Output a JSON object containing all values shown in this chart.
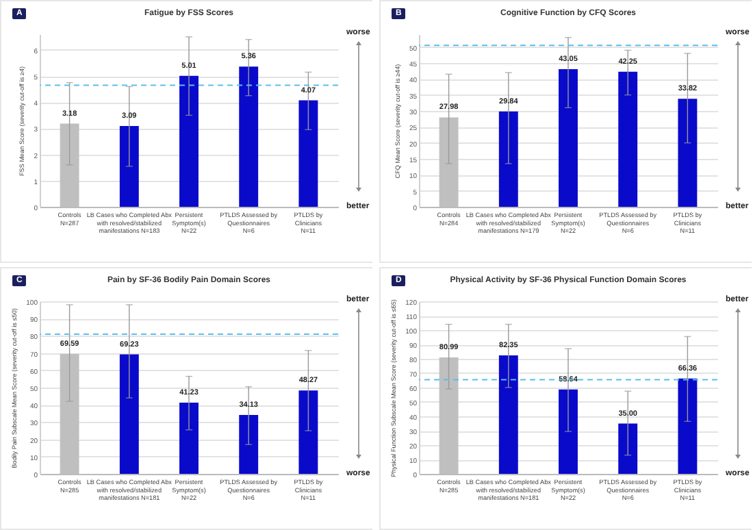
{
  "chart_data": [
    {
      "type": "bar",
      "title": "Fatigue by FSS Scores",
      "ylabel": "FSS Mean Score (severity cut-off is ≥4)",
      "categories": [
        "Controls\nN=287",
        "LB Cases who Completed Abx\nwith resolved/stabilized\nmanifestations N=183",
        "Persistent\nSymptom(s)\nN=22",
        "PTLDS Assessed by\nQuestionnaires\nN=6",
        "PTLDS by\nClinicians\nN=11"
      ],
      "values": [
        3.18,
        3.09,
        5.01,
        5.36,
        4.07
      ],
      "value_labels": [
        "3.18",
        "3.09",
        "5.01",
        "5.36",
        "4.07"
      ],
      "errors": [
        [
          1.6,
          4.75
        ],
        [
          1.55,
          4.6
        ],
        [
          3.5,
          6.5
        ],
        [
          4.25,
          6.4
        ],
        [
          2.95,
          5.15
        ]
      ],
      "colors": [
        "#bfbfbf",
        "#0a0acb",
        "#0a0acb",
        "#0a0acb",
        "#0a0acb"
      ],
      "ylim": [
        0,
        6.6
      ],
      "yticks": [
        0,
        1,
        2,
        3,
        4,
        5,
        6
      ],
      "grid": "y",
      "ref_lines": [
        {
          "axis": "y",
          "value": 4.65,
          "color": "#5bbfe9",
          "line_style": "dashed"
        }
      ],
      "annotations": [
        "A",
        "worse",
        "better"
      ]
    },
    {
      "type": "bar",
      "title": "Cognitive Function by CFQ Scores",
      "ylabel": "CFQ Mean Score (severity cut-off is ≥44)",
      "categories": [
        "Controls\nN=284",
        "LB Cases who Completed Abx\nwith resolved/stabilized\nmanifestations N=179",
        "Persistent\nSymptom(s)\nN=22",
        "PTLDS Assessed by\nQuestionnaires\nN=6",
        "PTLDS by\nClinicians\nN=11"
      ],
      "values": [
        27.98,
        29.84,
        43.05,
        42.25,
        33.82
      ],
      "value_labels": [
        "27.98",
        "29.84",
        "43.05",
        "42.25",
        "33.82"
      ],
      "errors": [
        [
          13.5,
          41.5
        ],
        [
          13.5,
          42
        ],
        [
          31,
          53
        ],
        [
          35,
          49
        ],
        [
          20,
          48
        ]
      ],
      "colors": [
        "#bfbfbf",
        "#0a0acb",
        "#0a0acb",
        "#0a0acb",
        "#0a0acb"
      ],
      "ylim": [
        0,
        54
      ],
      "yticks": [
        0,
        5,
        10,
        15,
        20,
        25,
        30,
        35,
        40,
        45,
        50
      ],
      "grid": "y",
      "ref_lines": [
        {
          "axis": "y",
          "value": 50.5,
          "color": "#5bbfe9",
          "line_style": "dashed"
        }
      ],
      "annotations": [
        "B",
        "worse",
        "better"
      ]
    },
    {
      "type": "bar",
      "title": "Pain by SF-36 Bodily Pain Domain Scores",
      "ylabel": "Bodily Pain Subscale Mean Score (severity cut-off is ≤50)",
      "categories": [
        "Controls\nN=285",
        "LB Cases who Completed Abx\nwith resolved/stabilized\nmanifestations N=181",
        "Persistent\nSymptom(s)\nN=22",
        "PTLDS Assessed by\nQuestionnaires\nN=6",
        "PTLDS by\nClinicians\nN=11"
      ],
      "values": [
        69.59,
        69.23,
        41.23,
        34.13,
        48.27
      ],
      "value_labels": [
        "69.59",
        "69.23",
        "41.23",
        "34.13",
        "48.27"
      ],
      "errors": [
        [
          42,
          98
        ],
        [
          44,
          98
        ],
        [
          25.5,
          56.5
        ],
        [
          17,
          50.5
        ],
        [
          25,
          71.5
        ]
      ],
      "colors": [
        "#bfbfbf",
        "#0a0acb",
        "#0a0acb",
        "#0a0acb",
        "#0a0acb"
      ],
      "ylim": [
        0,
        100
      ],
      "yticks": [
        0,
        10,
        20,
        30,
        40,
        50,
        60,
        70,
        80,
        90,
        100
      ],
      "grid": "y",
      "ref_lines": [
        {
          "axis": "y",
          "value": 81,
          "color": "#5bbfe9",
          "line_style": "dashed"
        }
      ],
      "annotations": [
        "C",
        "better",
        "worse"
      ]
    },
    {
      "type": "bar",
      "title": "Physical Activity by SF-36 Physical Function Domain Scores",
      "ylabel": "Physical Function Subscale Mean Score (severity cut-off is ≤65)",
      "categories": [
        "Controls\nN=285",
        "LB Cases who Completed Abx\nwith resolved/stabilized\nmanifestations N=181",
        "Persistent\nSymptom(s)\nN=22",
        "PTLDS Assessed by\nQuestionnaires\nN=6",
        "PTLDS by\nClinicians\nN=11"
      ],
      "values": [
        80.99,
        82.35,
        58.64,
        35.0,
        66.36
      ],
      "value_labels": [
        "80.99",
        "82.35",
        "58.64",
        "35.00",
        "66.36"
      ],
      "errors": [
        [
          59,
          104
        ],
        [
          60,
          104
        ],
        [
          29.5,
          87
        ],
        [
          13,
          57.5
        ],
        [
          36.5,
          95.5
        ]
      ],
      "colors": [
        "#bfbfbf",
        "#0a0acb",
        "#0a0acb",
        "#0a0acb",
        "#0a0acb"
      ],
      "ylim": [
        0,
        120
      ],
      "yticks": [
        0,
        10,
        20,
        30,
        40,
        50,
        60,
        70,
        80,
        90,
        100,
        110,
        120
      ],
      "grid": "y",
      "ref_lines": [
        {
          "axis": "y",
          "value": 65.5,
          "color": "#5bbfe9",
          "line_style": "dashed"
        }
      ],
      "annotations": [
        "D",
        "better",
        "worse"
      ]
    }
  ]
}
